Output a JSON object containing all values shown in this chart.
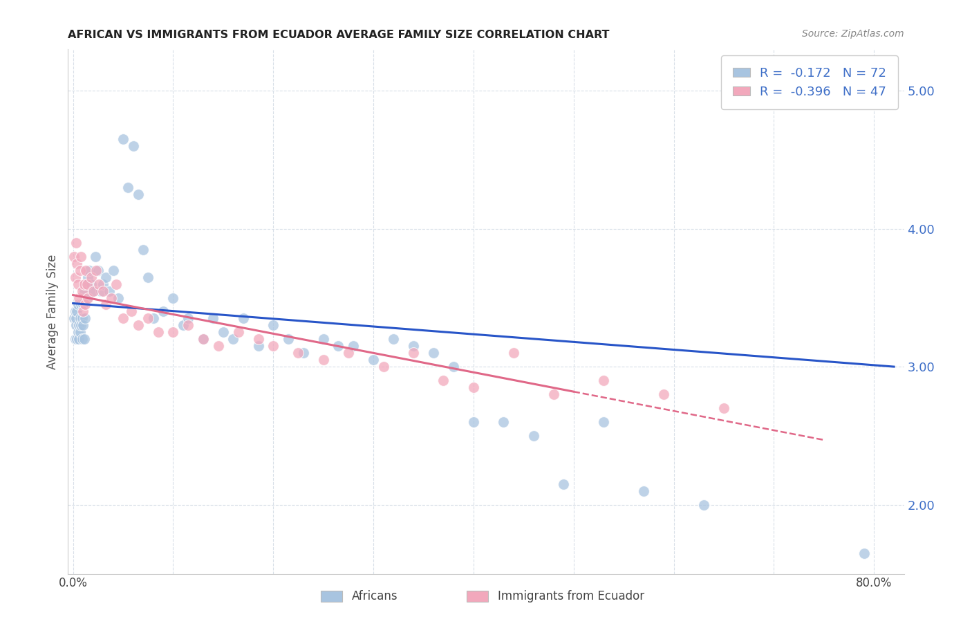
{
  "title": "AFRICAN VS IMMIGRANTS FROM ECUADOR AVERAGE FAMILY SIZE CORRELATION CHART",
  "source": "Source: ZipAtlas.com",
  "ylabel": "Average Family Size",
  "ylim": [
    1.5,
    5.3
  ],
  "xlim": [
    -0.005,
    0.83
  ],
  "yticks": [
    2.0,
    3.0,
    4.0,
    5.0
  ],
  "xticks": [
    0.0,
    0.1,
    0.2,
    0.3,
    0.4,
    0.5,
    0.6,
    0.7,
    0.8
  ],
  "xtick_labels": [
    "0.0%",
    "",
    "",
    "",
    "",
    "",
    "",
    "",
    "80.0%"
  ],
  "legend_r1_val": "-0.172",
  "legend_n1": "72",
  "legend_r2_val": "-0.396",
  "legend_n2": "47",
  "blue_color": "#a8c4e0",
  "pink_color": "#f2a8bc",
  "blue_line_color": "#2855c8",
  "pink_line_color": "#e06888",
  "background_color": "#ffffff",
  "grid_color": "#d8dfe8",
  "africans_x": [
    0.001,
    0.002,
    0.002,
    0.003,
    0.003,
    0.004,
    0.004,
    0.005,
    0.005,
    0.006,
    0.006,
    0.007,
    0.007,
    0.008,
    0.008,
    0.009,
    0.009,
    0.01,
    0.01,
    0.011,
    0.011,
    0.012,
    0.013,
    0.014,
    0.015,
    0.016,
    0.018,
    0.02,
    0.022,
    0.025,
    0.028,
    0.03,
    0.033,
    0.036,
    0.04,
    0.045,
    0.05,
    0.055,
    0.06,
    0.065,
    0.07,
    0.075,
    0.08,
    0.09,
    0.1,
    0.11,
    0.115,
    0.13,
    0.14,
    0.15,
    0.16,
    0.17,
    0.185,
    0.2,
    0.215,
    0.23,
    0.25,
    0.265,
    0.28,
    0.3,
    0.32,
    0.34,
    0.36,
    0.38,
    0.4,
    0.43,
    0.46,
    0.49,
    0.53,
    0.57,
    0.63,
    0.79
  ],
  "africans_y": [
    3.35,
    3.2,
    3.4,
    3.3,
    3.35,
    3.2,
    3.4,
    3.25,
    3.45,
    3.3,
    3.2,
    3.35,
    3.25,
    3.3,
    3.45,
    3.2,
    3.35,
    3.3,
    3.45,
    3.2,
    3.55,
    3.35,
    3.6,
    3.5,
    3.65,
    3.7,
    3.6,
    3.55,
    3.8,
    3.7,
    3.55,
    3.6,
    3.65,
    3.55,
    3.7,
    3.5,
    4.65,
    4.3,
    4.6,
    4.25,
    3.85,
    3.65,
    3.35,
    3.4,
    3.5,
    3.3,
    3.35,
    3.2,
    3.35,
    3.25,
    3.2,
    3.35,
    3.15,
    3.3,
    3.2,
    3.1,
    3.2,
    3.15,
    3.15,
    3.05,
    3.2,
    3.15,
    3.1,
    3.0,
    2.6,
    2.6,
    2.5,
    2.15,
    2.6,
    2.1,
    2.0,
    1.65
  ],
  "ecuador_x": [
    0.001,
    0.002,
    0.003,
    0.004,
    0.005,
    0.006,
    0.007,
    0.008,
    0.009,
    0.01,
    0.011,
    0.012,
    0.013,
    0.014,
    0.015,
    0.018,
    0.02,
    0.023,
    0.026,
    0.03,
    0.033,
    0.038,
    0.043,
    0.05,
    0.058,
    0.065,
    0.075,
    0.085,
    0.1,
    0.115,
    0.13,
    0.145,
    0.165,
    0.185,
    0.2,
    0.225,
    0.25,
    0.275,
    0.31,
    0.34,
    0.37,
    0.4,
    0.44,
    0.48,
    0.53,
    0.59,
    0.65
  ],
  "ecuador_y": [
    3.8,
    3.65,
    3.9,
    3.75,
    3.6,
    3.5,
    3.7,
    3.8,
    3.55,
    3.4,
    3.6,
    3.45,
    3.7,
    3.6,
    3.5,
    3.65,
    3.55,
    3.7,
    3.6,
    3.55,
    3.45,
    3.5,
    3.6,
    3.35,
    3.4,
    3.3,
    3.35,
    3.25,
    3.25,
    3.3,
    3.2,
    3.15,
    3.25,
    3.2,
    3.15,
    3.1,
    3.05,
    3.1,
    3.0,
    3.1,
    2.9,
    2.85,
    3.1,
    2.8,
    2.9,
    2.8,
    2.7
  ]
}
